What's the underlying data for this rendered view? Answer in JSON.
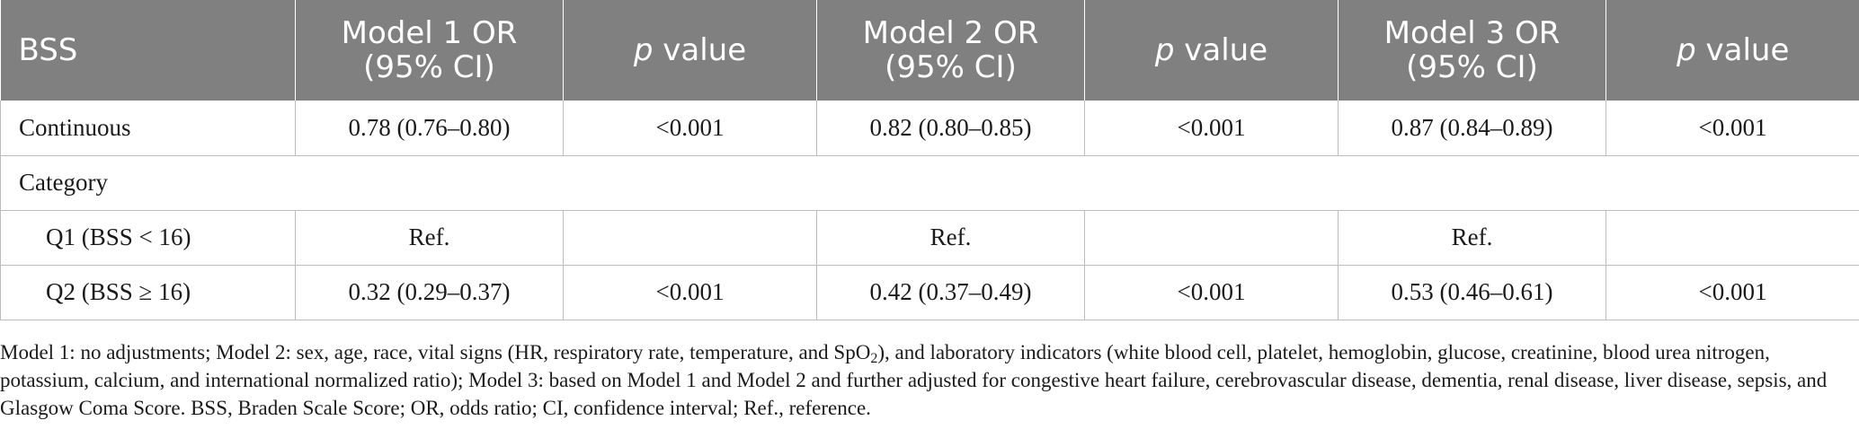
{
  "header": {
    "col0": "BSS",
    "model1_line1": "Model 1 OR",
    "model1_line2": "(95% CI)",
    "p1_italic": "p",
    "p1_rest": " value",
    "model2_line1": "Model 2 OR",
    "model2_line2": "(95% CI)",
    "p2_italic": "p",
    "p2_rest": " value",
    "model3_line1": "Model 3 OR",
    "model3_line2": "(95% CI)",
    "p3_italic": "p",
    "p3_rest": " value"
  },
  "rows": {
    "continuous": {
      "label": "Continuous",
      "m1": "0.78 (0.76–0.80)",
      "p1": "<0.001",
      "m2": "0.82 (0.80–0.85)",
      "p2": "<0.001",
      "m3": "0.87 (0.84–0.89)",
      "p3": "<0.001"
    },
    "category": {
      "label": "Category"
    },
    "q1": {
      "label": "Q1 (BSS < 16)",
      "m1": "Ref.",
      "p1": "",
      "m2": "Ref.",
      "p2": "",
      "m3": "Ref.",
      "p3": ""
    },
    "q2": {
      "label": "Q2 (BSS ≥ 16)",
      "m1": "0.32 (0.29–0.37)",
      "p1": "<0.001",
      "m2": "0.42 (0.37–0.49)",
      "p2": "<0.001",
      "m3": "0.53 (0.46–0.61)",
      "p3": "<0.001"
    }
  },
  "footnote": {
    "part1": "Model 1: no adjustments; Model 2: sex, age, race, vital signs (HR, respiratory rate, temperature, and SpO",
    "sub": "2",
    "part2": "), and laboratory indicators (white blood cell, platelet, hemoglobin, glucose, creatinine, blood urea nitrogen, potassium, calcium, and international normalized ratio); Model 3: based on Model 1 and Model 2 and further adjusted for congestive heart failure, cerebrovascular disease, dementia, renal disease, liver disease, sepsis, and Glasgow Coma Score. BSS, Braden Scale Score; OR, odds ratio; CI, confidence interval; Ref., reference."
  },
  "colors": {
    "header_bg": "#808080",
    "header_text": "#ffffff",
    "grid": "#bdbdbd"
  }
}
